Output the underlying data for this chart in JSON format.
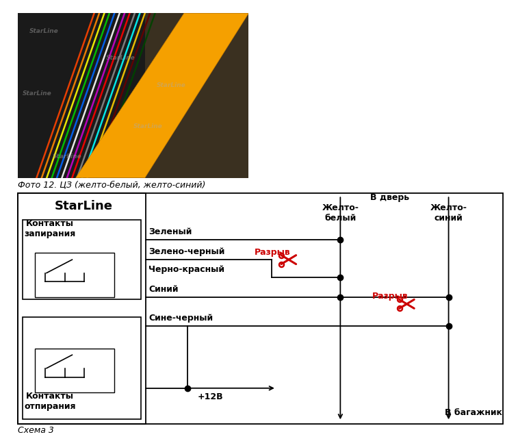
{
  "bg_color": "#ffffff",
  "photo_caption": "Фото 12. ЦЗ (желто-белый, желто-синий)",
  "schema_caption": "Схема 3",
  "starline_label": "StarLine",
  "box1_label": "Контакты\nзапирания",
  "box2_label": "Контакты\nотпирания",
  "wire_labels": [
    "Зеленый",
    "Зелено-черный",
    "Черно-красный",
    "Синий",
    "Сине-черный"
  ],
  "razryv_label": "Разрыв",
  "v_dver_label": "В дверь",
  "v_bagazhnik_label": "В багажник",
  "zheltobely_label": "Желто-\nбелый",
  "zheltosiniy_label": "Желто-\nсиний",
  "plus12_label": "+12В",
  "line_color": "#000000",
  "razryv_color": "#cc0000"
}
